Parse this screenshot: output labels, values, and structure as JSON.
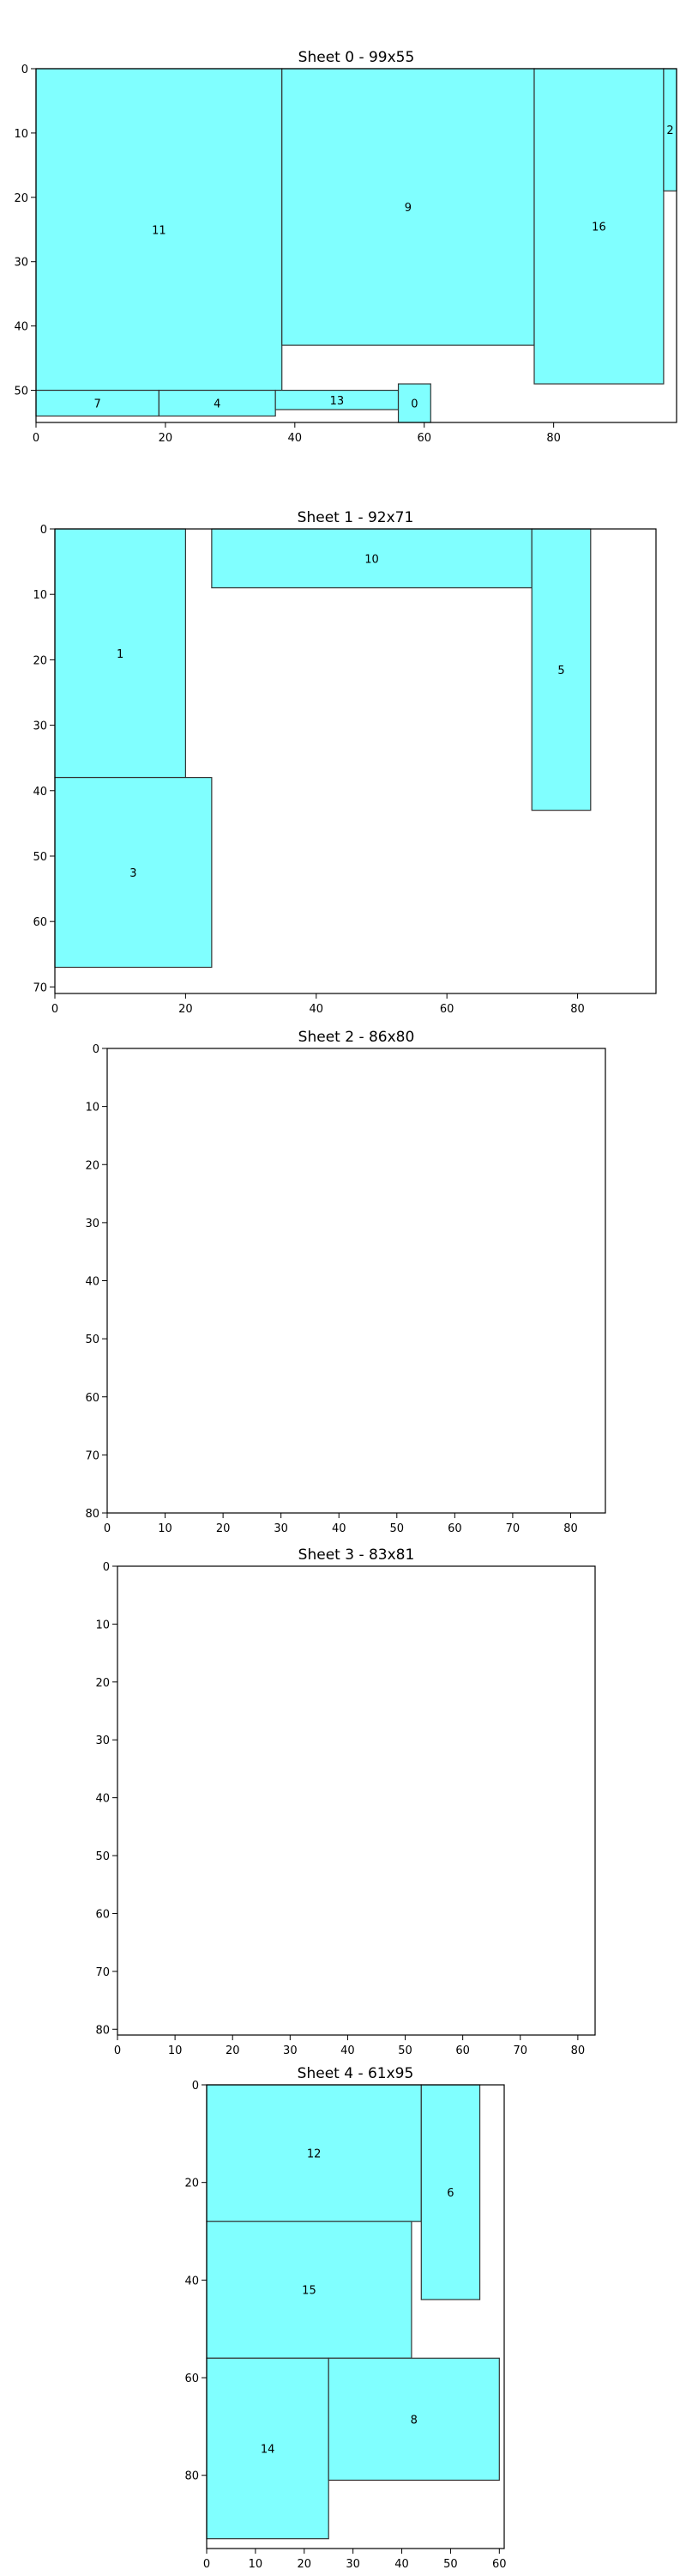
{
  "colors": {
    "fill": "#80ffff",
    "edge": "#333333",
    "axis": "#000000"
  },
  "chart_data": [
    {
      "type": "bin-packing layout",
      "title": "Sheet 0 - 99x55",
      "sheet": {
        "width": 99,
        "height": 55
      },
      "xticks": [
        0,
        20,
        40,
        60,
        80
      ],
      "yticks": [
        0,
        10,
        20,
        30,
        40,
        50
      ],
      "y_inverted": true,
      "grid": false,
      "rects": [
        {
          "id": "11",
          "x": 0,
          "y": 0,
          "w": 38,
          "h": 50
        },
        {
          "id": "9",
          "x": 38,
          "y": 0,
          "w": 39,
          "h": 43
        },
        {
          "id": "16",
          "x": 77,
          "y": 0,
          "w": 20,
          "h": 49
        },
        {
          "id": "2",
          "x": 97,
          "y": 0,
          "w": 2,
          "h": 19
        },
        {
          "id": "7",
          "x": 0,
          "y": 50,
          "w": 19,
          "h": 4
        },
        {
          "id": "4",
          "x": 19,
          "y": 50,
          "w": 18,
          "h": 4
        },
        {
          "id": "13",
          "x": 37,
          "y": 50,
          "w": 19,
          "h": 3
        },
        {
          "id": "0",
          "x": 56,
          "y": 49,
          "w": 5,
          "h": 6
        }
      ]
    },
    {
      "type": "bin-packing layout",
      "title": "Sheet 1 - 92x71",
      "sheet": {
        "width": 92,
        "height": 71
      },
      "xticks": [
        0,
        20,
        40,
        60,
        80
      ],
      "yticks": [
        0,
        10,
        20,
        30,
        40,
        50,
        60,
        70
      ],
      "y_inverted": true,
      "grid": false,
      "rects": [
        {
          "id": "1",
          "x": 0,
          "y": 0,
          "w": 20,
          "h": 38
        },
        {
          "id": "10",
          "x": 24,
          "y": 0,
          "w": 49,
          "h": 9
        },
        {
          "id": "5",
          "x": 73,
          "y": 0,
          "w": 9,
          "h": 43
        },
        {
          "id": "3",
          "x": 0,
          "y": 38,
          "w": 24,
          "h": 29
        }
      ]
    },
    {
      "type": "bin-packing layout",
      "title": "Sheet 2 - 86x80",
      "sheet": {
        "width": 86,
        "height": 80
      },
      "xticks": [
        0,
        10,
        20,
        30,
        40,
        50,
        60,
        70,
        80
      ],
      "yticks": [
        0,
        10,
        20,
        30,
        40,
        50,
        60,
        70,
        80
      ],
      "y_inverted": true,
      "grid": false,
      "rects": []
    },
    {
      "type": "bin-packing layout",
      "title": "Sheet 3 - 83x81",
      "sheet": {
        "width": 83,
        "height": 81
      },
      "xticks": [
        0,
        10,
        20,
        30,
        40,
        50,
        60,
        70,
        80
      ],
      "yticks": [
        0,
        10,
        20,
        30,
        40,
        50,
        60,
        70,
        80
      ],
      "y_inverted": true,
      "grid": false,
      "rects": []
    },
    {
      "type": "bin-packing layout",
      "title": "Sheet 4 - 61x95",
      "sheet": {
        "width": 61,
        "height": 95
      },
      "xticks": [
        0,
        10,
        20,
        30,
        40,
        50,
        60
      ],
      "yticks": [
        0,
        20,
        40,
        60,
        80
      ],
      "y_inverted": true,
      "grid": false,
      "rects": [
        {
          "id": "12",
          "x": 0,
          "y": 0,
          "w": 44,
          "h": 28
        },
        {
          "id": "6",
          "x": 44,
          "y": 0,
          "w": 12,
          "h": 44
        },
        {
          "id": "15",
          "x": 0,
          "y": 28,
          "w": 42,
          "h": 28
        },
        {
          "id": "14",
          "x": 0,
          "y": 56,
          "w": 25,
          "h": 37
        },
        {
          "id": "8",
          "x": 25,
          "y": 56,
          "w": 35,
          "h": 25
        }
      ]
    }
  ]
}
